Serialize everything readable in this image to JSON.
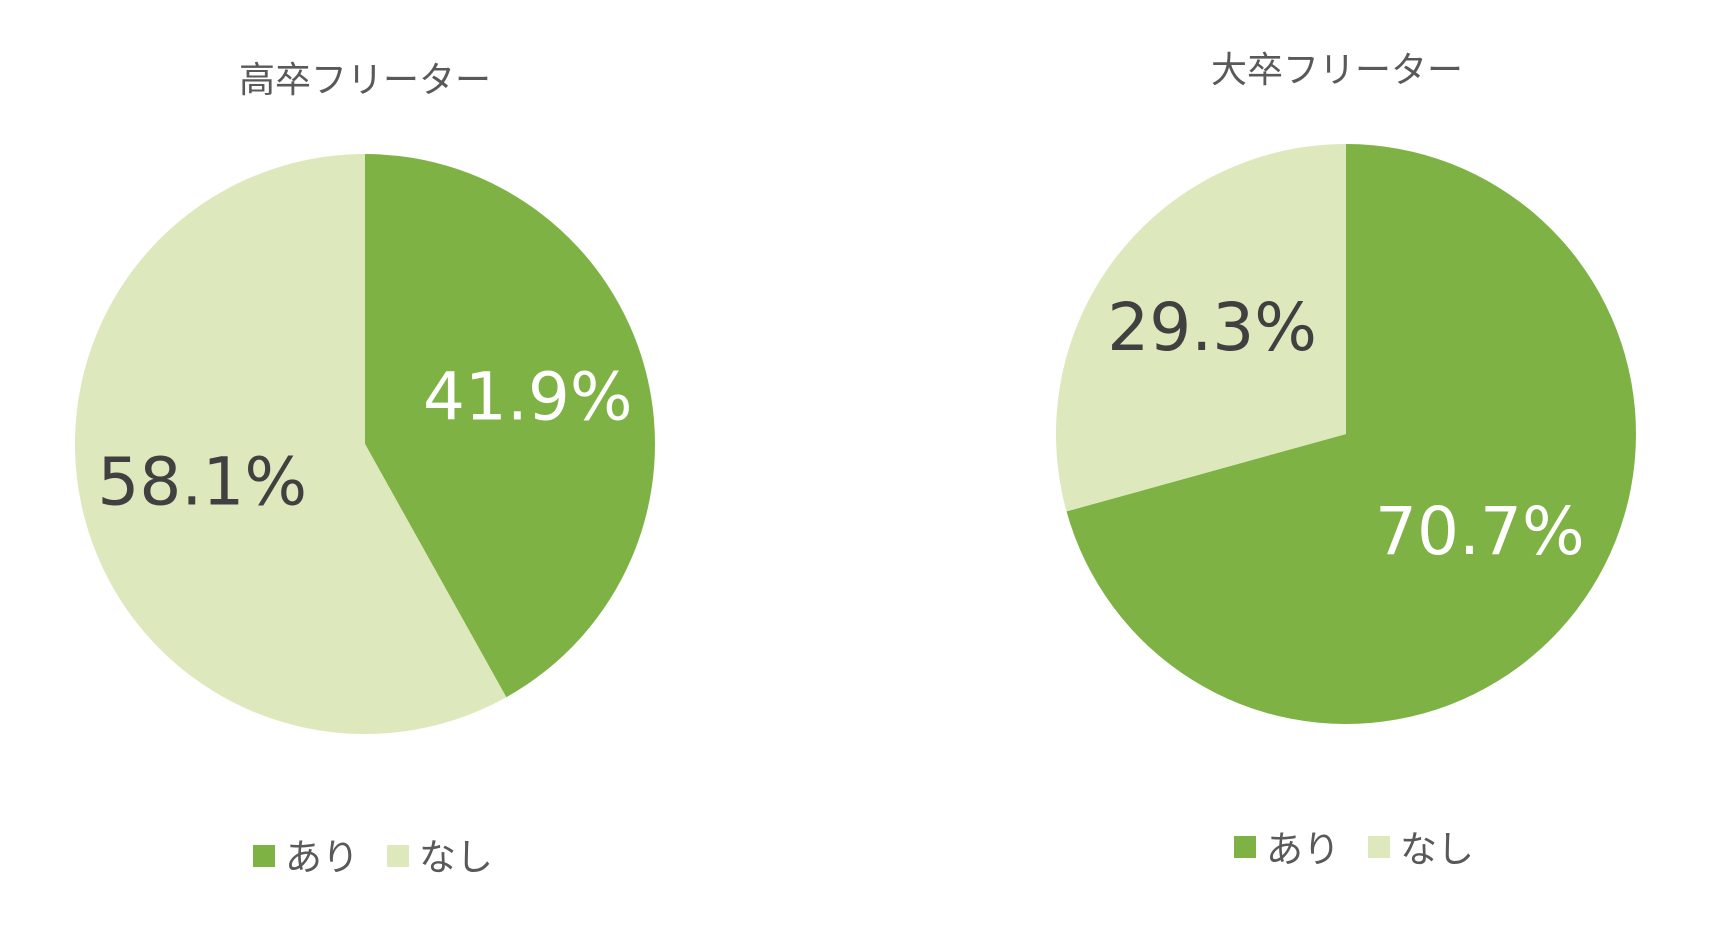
{
  "colors": {
    "ari": "#7fb244",
    "nashi": "#dde8bd",
    "label_dark": "#404040",
    "label_light": "#ffffff",
    "title": "#595959"
  },
  "chart_data": [
    {
      "type": "pie",
      "title": "高卒フリーター",
      "slices": [
        {
          "name": "あり",
          "value": 41.9,
          "label": "41.9%",
          "color": "#7fb244",
          "label_color": "#ffffff"
        },
        {
          "name": "なし",
          "value": 58.1,
          "label": "58.1%",
          "color": "#dde8bd",
          "label_color": "#404040"
        }
      ],
      "legend": {
        "position": "bottom",
        "items": [
          "あり",
          "なし"
        ]
      }
    },
    {
      "type": "pie",
      "title": "大卒フリーター",
      "slices": [
        {
          "name": "あり",
          "value": 70.7,
          "label": "70.7%",
          "color": "#7fb244",
          "label_color": "#ffffff"
        },
        {
          "name": "なし",
          "value": 29.3,
          "label": "29.3%",
          "color": "#dde8bd",
          "label_color": "#404040"
        }
      ],
      "legend": {
        "position": "bottom",
        "items": [
          "あり",
          "なし"
        ]
      }
    }
  ]
}
